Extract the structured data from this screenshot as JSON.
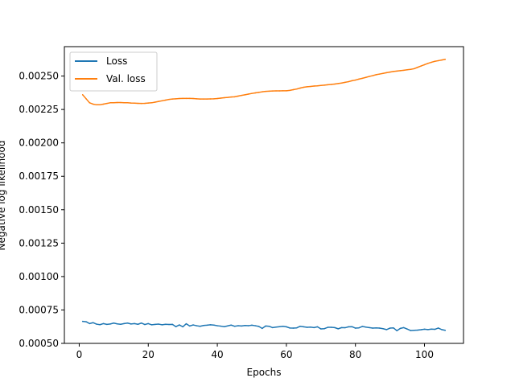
{
  "chart_data": {
    "type": "line",
    "xlabel": "Epochs",
    "ylabel": "Negative log likelihood",
    "xlim": [
      -4.3,
      111.3
    ],
    "ylim": [
      0.0005,
      0.00272
    ],
    "x_ticks": [
      0,
      20,
      40,
      60,
      80,
      100
    ],
    "y_ticks": [
      0.0005,
      0.00075,
      0.001,
      0.00125,
      0.0015,
      0.00175,
      0.002,
      0.00225,
      0.0025
    ],
    "x_tick_labels": [
      "0",
      "20",
      "40",
      "60",
      "80",
      "100"
    ],
    "y_tick_labels": [
      "0.00050",
      "0.00075",
      "0.00100",
      "0.00125",
      "0.00150",
      "0.00175",
      "0.00200",
      "0.00225",
      "0.00250"
    ],
    "grid": false,
    "legend_position": "top-left",
    "series": [
      {
        "name": "Loss",
        "color": "#1f77b4",
        "x": [
          1,
          2,
          3,
          4,
          5,
          6,
          7,
          8,
          9,
          10,
          11,
          12,
          13,
          14,
          15,
          16,
          17,
          18,
          19,
          20,
          21,
          22,
          23,
          24,
          25,
          26,
          27,
          28,
          29,
          30,
          31,
          32,
          33,
          34,
          35,
          36,
          37,
          38,
          39,
          40,
          41,
          42,
          43,
          44,
          45,
          46,
          47,
          48,
          49,
          50,
          51,
          52,
          53,
          54,
          55,
          56,
          57,
          58,
          59,
          60,
          61,
          62,
          63,
          64,
          65,
          66,
          67,
          68,
          69,
          70,
          71,
          72,
          73,
          74,
          75,
          76,
          77,
          78,
          79,
          80,
          81,
          82,
          83,
          84,
          85,
          86,
          87,
          88,
          89,
          90,
          91,
          92,
          93,
          94,
          95,
          96,
          97,
          98,
          99,
          100,
          101,
          102,
          103,
          104,
          105,
          106
        ],
        "values": [
          0.000665,
          0.000662,
          0.000648,
          0.000655,
          0.000644,
          0.00064,
          0.000648,
          0.000642,
          0.000645,
          0.000652,
          0.000646,
          0.000643,
          0.000648,
          0.000652,
          0.000645,
          0.000648,
          0.000643,
          0.000652,
          0.000641,
          0.000648,
          0.000639,
          0.000642,
          0.000644,
          0.000639,
          0.000643,
          0.000641,
          0.000642,
          0.000625,
          0.000638,
          0.000624,
          0.000647,
          0.00063,
          0.000638,
          0.000632,
          0.000628,
          0.000634,
          0.000636,
          0.000639,
          0.000637,
          0.000632,
          0.000629,
          0.000625,
          0.000631,
          0.000637,
          0.000628,
          0.000632,
          0.00063,
          0.000634,
          0.000632,
          0.000636,
          0.000632,
          0.000627,
          0.000612,
          0.00063,
          0.000628,
          0.000618,
          0.000622,
          0.000625,
          0.000628,
          0.000624,
          0.000615,
          0.000614,
          0.000616,
          0.000628,
          0.000624,
          0.00062,
          0.000622,
          0.000618,
          0.000624,
          0.000608,
          0.00061,
          0.00062,
          0.00062,
          0.000618,
          0.000609,
          0.000618,
          0.000617,
          0.000624,
          0.000625,
          0.000614,
          0.000616,
          0.000627,
          0.000622,
          0.000618,
          0.000614,
          0.000616,
          0.000614,
          0.00061,
          0.000603,
          0.000614,
          0.000616,
          0.000595,
          0.000612,
          0.000618,
          0.000607,
          0.000596,
          0.000598,
          0.000599,
          0.000602,
          0.000606,
          0.000603,
          0.000607,
          0.000605,
          0.000615,
          0.000603,
          0.000598
        ]
      },
      {
        "name": "Val. loss",
        "color": "#ff7f0e",
        "x": [
          1,
          2,
          3,
          4,
          5,
          6,
          7,
          8,
          9,
          10,
          11,
          12,
          13,
          14,
          15,
          16,
          17,
          18,
          19,
          20,
          21,
          22,
          23,
          24,
          25,
          26,
          27,
          28,
          29,
          30,
          31,
          32,
          33,
          34,
          35,
          36,
          37,
          38,
          39,
          40,
          41,
          42,
          43,
          44,
          45,
          46,
          47,
          48,
          49,
          50,
          51,
          52,
          53,
          54,
          55,
          56,
          57,
          58,
          59,
          60,
          61,
          62,
          63,
          64,
          65,
          66,
          67,
          68,
          69,
          70,
          71,
          72,
          73,
          74,
          75,
          76,
          77,
          78,
          79,
          80,
          81,
          82,
          83,
          84,
          85,
          86,
          87,
          88,
          89,
          90,
          91,
          92,
          93,
          94,
          95,
          96,
          97,
          98,
          99,
          100,
          101,
          102,
          103,
          104,
          105,
          106
        ],
        "values": [
          0.00236,
          0.00233,
          0.0023,
          0.00229,
          0.002285,
          0.002285,
          0.00229,
          0.002295,
          0.0023,
          0.0023,
          0.002302,
          0.002302,
          0.0023,
          0.0023,
          0.002298,
          0.002297,
          0.002296,
          0.002295,
          0.002296,
          0.002298,
          0.0023,
          0.002305,
          0.00231,
          0.002315,
          0.00232,
          0.002325,
          0.002328,
          0.00233,
          0.002332,
          0.002333,
          0.002333,
          0.002333,
          0.002332,
          0.00233,
          0.002328,
          0.002328,
          0.002328,
          0.002329,
          0.00233,
          0.002332,
          0.002335,
          0.002338,
          0.00234,
          0.002343,
          0.002345,
          0.00235,
          0.002355,
          0.00236,
          0.002365,
          0.00237,
          0.002374,
          0.002378,
          0.002382,
          0.002385,
          0.002387,
          0.002388,
          0.002389,
          0.002389,
          0.00239,
          0.00239,
          0.002393,
          0.002398,
          0.002403,
          0.00241,
          0.002416,
          0.00242,
          0.002422,
          0.002425,
          0.002427,
          0.00243,
          0.002432,
          0.002435,
          0.002437,
          0.00244,
          0.002444,
          0.002448,
          0.002453,
          0.002458,
          0.002465,
          0.00247,
          0.002477,
          0.002483,
          0.00249,
          0.002497,
          0.002503,
          0.00251,
          0.002515,
          0.00252,
          0.002525,
          0.00253,
          0.002534,
          0.002537,
          0.00254,
          0.002543,
          0.002547,
          0.00255,
          0.002555,
          0.002565,
          0.002575,
          0.002585,
          0.002595,
          0.002603,
          0.00261,
          0.002615,
          0.00262,
          0.002625
        ]
      }
    ]
  }
}
